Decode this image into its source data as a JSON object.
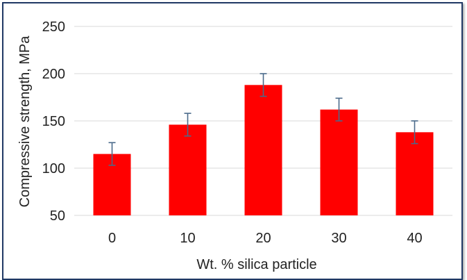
{
  "chart_data": {
    "type": "bar",
    "categories": [
      "0",
      "10",
      "20",
      "30",
      "40"
    ],
    "values": [
      115,
      146,
      188,
      162,
      138
    ],
    "errors": [
      12,
      12,
      12,
      12,
      12
    ],
    "xlabel": "Wt. % silica particle",
    "ylabel": "Compressive strength, MPa",
    "ylim": [
      50,
      250
    ],
    "yticks": [
      50,
      100,
      150,
      200,
      250
    ],
    "grid": true,
    "bar_color": "#ff0000",
    "error_bar_color": "#4a6a8a",
    "grid_color": "#d9d9d9",
    "border_color": "#1f3864"
  }
}
